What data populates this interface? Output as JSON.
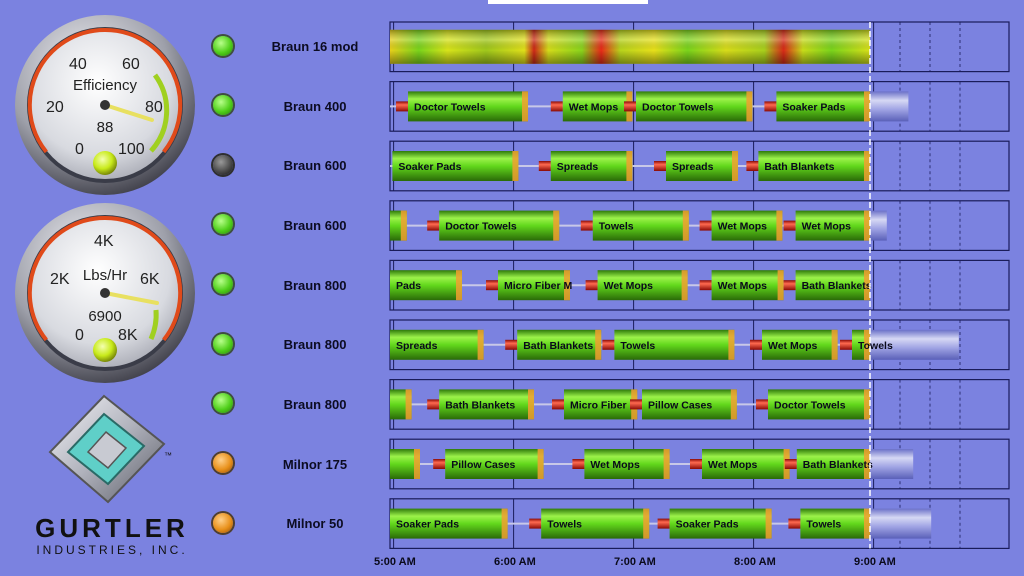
{
  "gauges": [
    {
      "id": "efficiency",
      "label": "Efficiency",
      "value": 88,
      "min": 0,
      "max": 100,
      "ticks": [
        "0",
        "20",
        "40",
        "60",
        "80",
        "100"
      ]
    },
    {
      "id": "throughput",
      "label": "Lbs/Hr",
      "value": 6900,
      "min": 0,
      "max": 8000,
      "ticks": [
        "0",
        "2K",
        "4K",
        "6K",
        "8K"
      ]
    }
  ],
  "machines": [
    {
      "name": "Braun 16 mod",
      "status": "running"
    },
    {
      "name": "Braun 400",
      "status": "running"
    },
    {
      "name": "Braun 600",
      "status": "stopped"
    },
    {
      "name": "Braun 600",
      "status": "running"
    },
    {
      "name": "Braun 800",
      "status": "running"
    },
    {
      "name": "Braun 800",
      "status": "running"
    },
    {
      "name": "Braun 800",
      "status": "running"
    },
    {
      "name": "Milnor 175",
      "status": "warning"
    },
    {
      "name": "Milnor 50",
      "status": "warning"
    }
  ],
  "timeline": {
    "start_hour": 4.97,
    "end_hour": 9.97,
    "now_hour": 8.97,
    "ticks": [
      "5:00 AM",
      "6:00 AM",
      "7:00 AM",
      "8:00 AM",
      "9:00 AM"
    ],
    "rows": [
      [
        {
          "label": "",
          "start": 4.97,
          "end": 8.97,
          "striped": true
        }
      ],
      [
        {
          "label": "Doctor Towels",
          "start": 5.12,
          "end": 6.12
        },
        {
          "label": "Wet Mops",
          "start": 6.41,
          "end": 6.99
        },
        {
          "label": "Doctor Towels",
          "start": 7.02,
          "end": 7.99
        },
        {
          "label": "Soaker Pads",
          "start": 8.19,
          "end": 9.29,
          "ghost": true
        }
      ],
      [
        {
          "label": "Soaker Pads",
          "start": 4.99,
          "end": 6.04
        },
        {
          "label": "Spreads",
          "start": 6.31,
          "end": 6.99
        },
        {
          "label": "Spreads",
          "start": 7.27,
          "end": 7.87
        },
        {
          "label": "Bath Blankets",
          "start": 8.04,
          "end": 9.0
        }
      ],
      [
        {
          "label": "",
          "start": 4.97,
          "end": 5.11
        },
        {
          "label": "Doctor Towels",
          "start": 5.38,
          "end": 6.38
        },
        {
          "label": "Towels",
          "start": 6.66,
          "end": 7.46
        },
        {
          "label": "Wet Mops",
          "start": 7.65,
          "end": 8.24
        },
        {
          "label": "Wet Mops",
          "start": 8.35,
          "end": 9.11,
          "ghost": true
        }
      ],
      [
        {
          "label": "Pads",
          "start": 4.97,
          "end": 5.57
        },
        {
          "label": "Micro Fiber M",
          "start": 5.87,
          "end": 6.47
        },
        {
          "label": "Wet Mops",
          "start": 6.7,
          "end": 7.45
        },
        {
          "label": "Wet Mops",
          "start": 7.65,
          "end": 8.25
        },
        {
          "label": "Bath Blankets",
          "start": 8.35,
          "end": 9.01
        }
      ],
      [
        {
          "label": "Spreads",
          "start": 4.97,
          "end": 5.75
        },
        {
          "label": "Bath Blankets",
          "start": 6.03,
          "end": 6.73
        },
        {
          "label": "Towels",
          "start": 6.84,
          "end": 7.84
        },
        {
          "label": "Wet Mops",
          "start": 8.07,
          "end": 8.7
        },
        {
          "label": "Towels",
          "start": 8.82,
          "end": 9.71,
          "ghost": true
        }
      ],
      [
        {
          "label": "",
          "start": 4.97,
          "end": 5.15
        },
        {
          "label": "Bath Blankets",
          "start": 5.38,
          "end": 6.17
        },
        {
          "label": "Micro Fiber M",
          "start": 6.42,
          "end": 7.03
        },
        {
          "label": "Pillow Cases",
          "start": 7.07,
          "end": 7.86
        },
        {
          "label": "Doctor Towels",
          "start": 8.12,
          "end": 9.06
        }
      ],
      [
        {
          "label": "",
          "start": 4.97,
          "end": 5.22
        },
        {
          "label": "Pillow Cases",
          "start": 5.43,
          "end": 6.25
        },
        {
          "label": "Wet Mops",
          "start": 6.59,
          "end": 7.3
        },
        {
          "label": "Wet Mops",
          "start": 7.57,
          "end": 8.3
        },
        {
          "label": "Bath Blankets",
          "start": 8.36,
          "end": 9.33,
          "ghost": true
        }
      ],
      [
        {
          "label": "Soaker Pads",
          "start": 4.97,
          "end": 5.95
        },
        {
          "label": "Towels",
          "start": 6.23,
          "end": 7.13
        },
        {
          "label": "Soaker Pads",
          "start": 7.3,
          "end": 8.15
        },
        {
          "label": "Towels",
          "start": 8.39,
          "end": 9.48,
          "ghost": true
        }
      ]
    ]
  },
  "brand": {
    "name": "GURTLER",
    "sub": "INDUSTRIES, INC.",
    "tm": "™"
  },
  "colors": {
    "background": "#7b82e0",
    "bar_green": "#66e01e",
    "bar_red": "#d82018",
    "bar_orange": "#f0a030",
    "bar_yellow": "#e8e41a"
  }
}
